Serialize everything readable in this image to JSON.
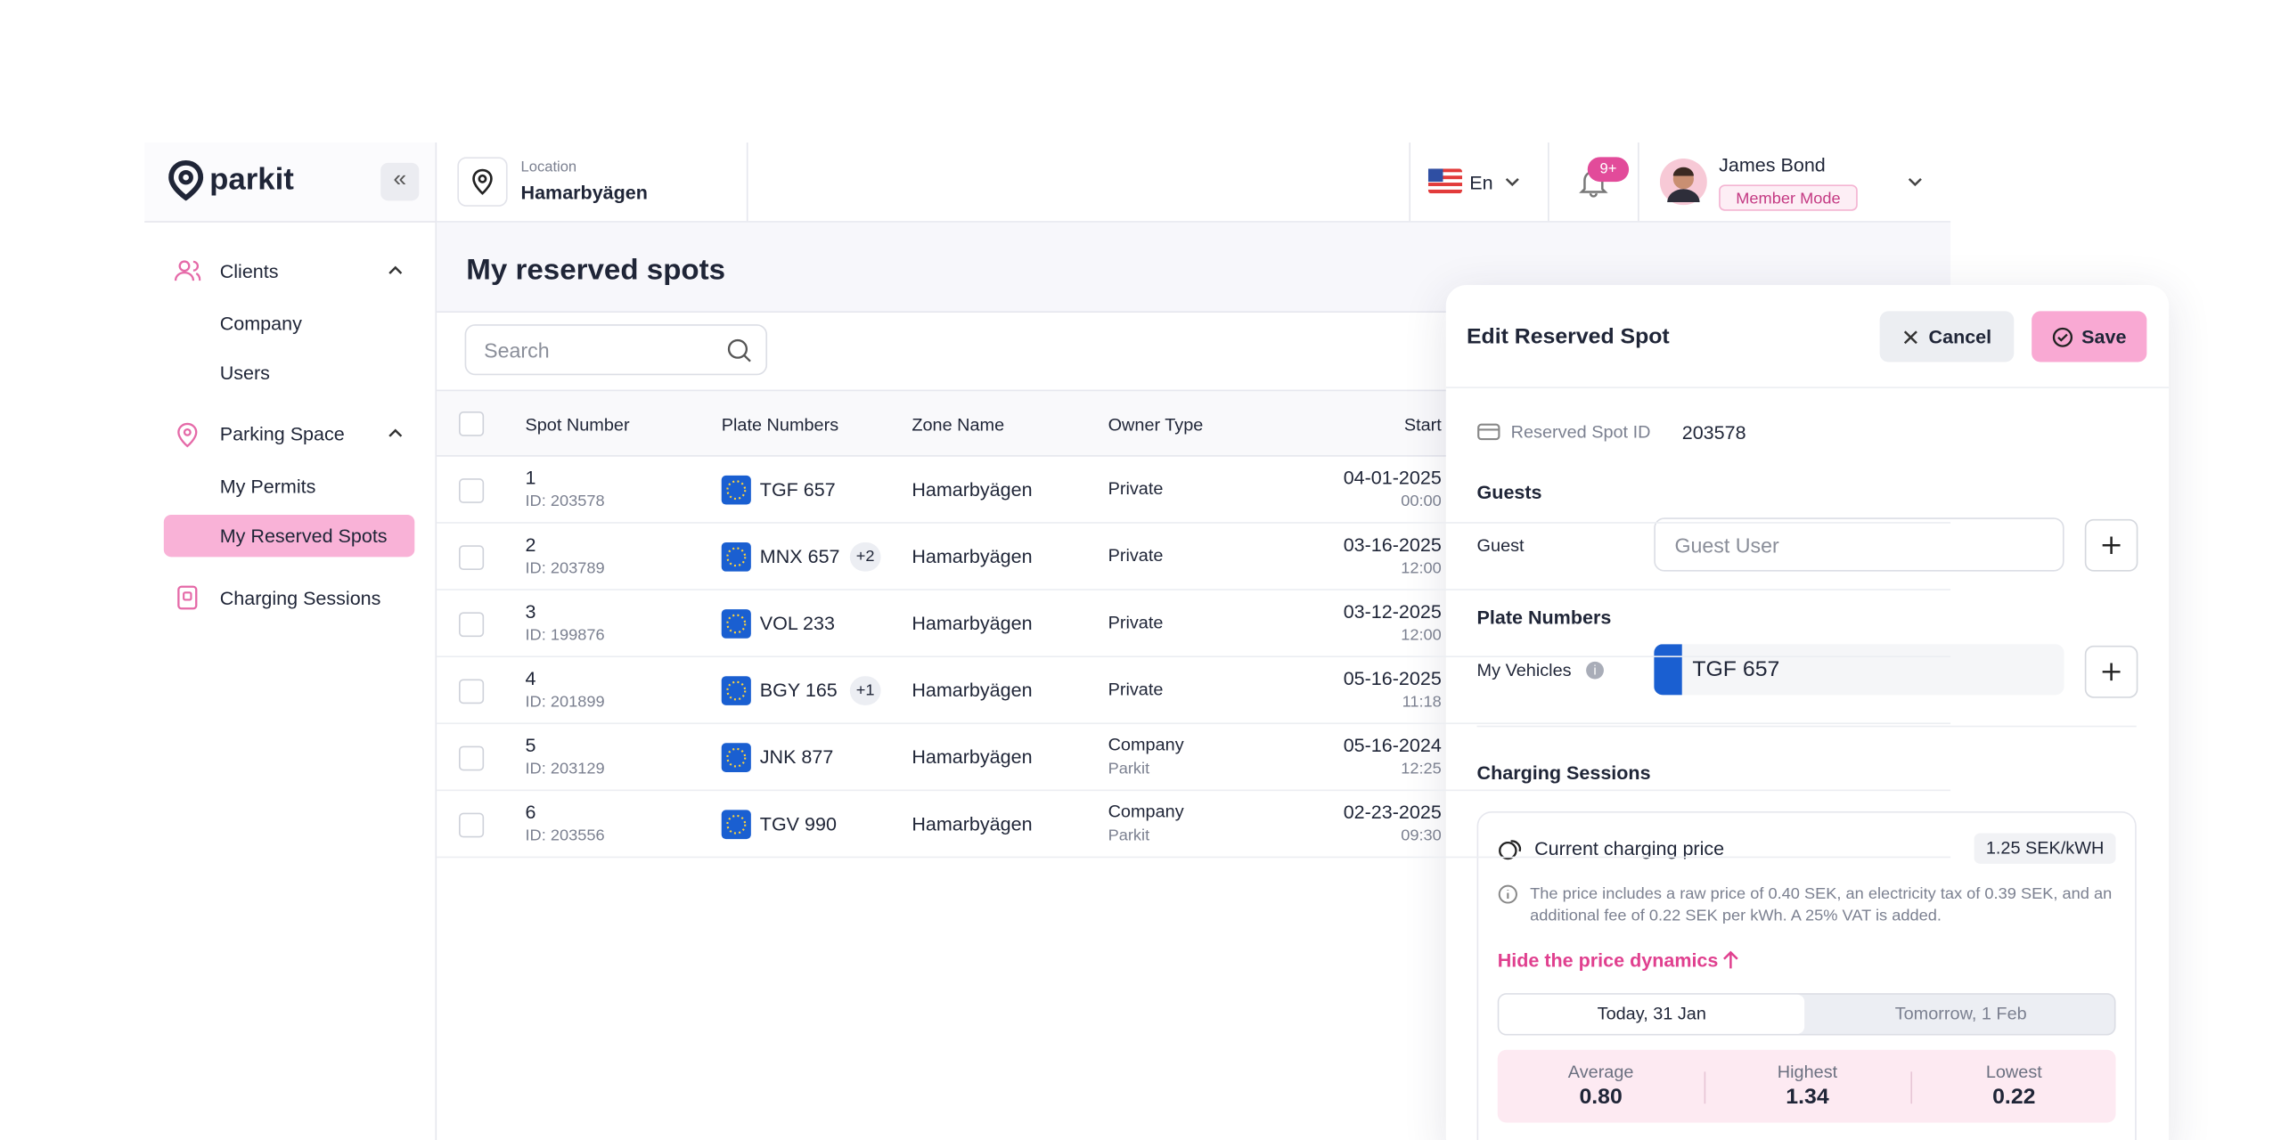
{
  "brand": "parkit",
  "header": {
    "location_label": "Location",
    "location": "Hamarbyägen",
    "language": "En",
    "notifications": "9+",
    "user_name": "James Bond",
    "user_mode": "Member Mode"
  },
  "sidebar": {
    "groups": [
      {
        "label": "Clients",
        "items": [
          "Company",
          "Users"
        ]
      },
      {
        "label": "Parking Space",
        "items": [
          "My Permits",
          "My Reserved Spots"
        ]
      },
      {
        "label": "Charging Sessions"
      }
    ],
    "active": "My Reserved Spots"
  },
  "page": {
    "title": "My reserved spots",
    "search_placeholder": "Search"
  },
  "table": {
    "columns": [
      "Spot Number",
      "Plate Numbers",
      "Zone Name",
      "Owner Type",
      "Start"
    ],
    "rows": [
      {
        "spot": "1",
        "id": "ID: 203578",
        "plate": "TGF 657",
        "zone": "Hamarbyägen",
        "owner": "Private",
        "date": "04-01-2025",
        "time": "00:00"
      },
      {
        "spot": "2",
        "id": "ID: 203789",
        "plate": "MNX 657",
        "extra": "+2",
        "zone": "Hamarbyägen",
        "owner": "Private",
        "date": "03-16-2025",
        "time": "12:00"
      },
      {
        "spot": "3",
        "id": "ID: 199876",
        "plate": "VOL 233",
        "zone": "Hamarbyägen",
        "owner": "Private",
        "date": "03-12-2025",
        "time": "12:00"
      },
      {
        "spot": "4",
        "id": "ID: 201899",
        "plate": "BGY 165",
        "extra": "+1",
        "zone": "Hamarbyägen",
        "owner": "Private",
        "date": "05-16-2025",
        "time": "11:18"
      },
      {
        "spot": "5",
        "id": "ID: 203129",
        "plate": "JNK 877",
        "zone": "Hamarbyägen",
        "owner": "Company",
        "owner_sub": "Parkit",
        "date": "05-16-2024",
        "time": "12:25"
      },
      {
        "spot": "6",
        "id": "ID: 203556",
        "plate": "TGV 990",
        "zone": "Hamarbyägen",
        "owner": "Company",
        "owner_sub": "Parkit",
        "date": "02-23-2025",
        "time": "09:30"
      }
    ]
  },
  "panel": {
    "title": "Edit Reserved Spot",
    "cancel": "Cancel",
    "save": "Save",
    "spot_id_label": "Reserved Spot ID",
    "spot_id": "203578",
    "guests_heading": "Guests",
    "guest_label": "Guest",
    "guest_placeholder": "Guest User",
    "plates_heading": "Plate Numbers",
    "vehicles_label": "My Vehicles",
    "vehicle_plate": "TGF 657",
    "charging_heading": "Charging Sessions",
    "price_label": "Current charging price",
    "price": "1.25 SEK/kWH",
    "price_note": "The price includes a raw price of 0.40 SEK, an electricity tax of 0.39 SEK, and an additional fee of 0.22 SEK per kWh. A 25% VAT is added.",
    "toggle": "Hide the price dynamics",
    "tabs": [
      "Today, 31 Jan",
      "Tomorrow, 1 Feb"
    ],
    "stats": [
      {
        "label": "Average",
        "value": "0.80"
      },
      {
        "label": "Highest",
        "value": "1.34"
      },
      {
        "label": "Lowest",
        "value": "0.22"
      }
    ]
  }
}
